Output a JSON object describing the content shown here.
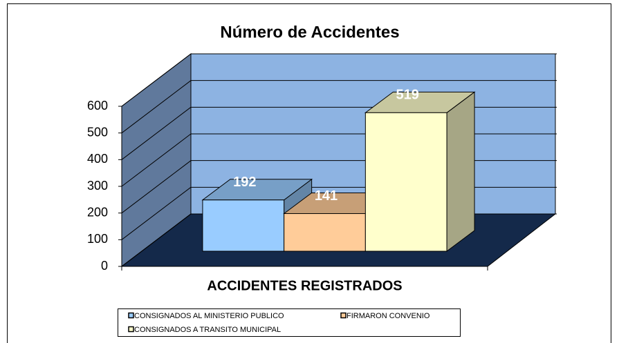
{
  "chart_data": {
    "type": "bar3d",
    "title": "Número de Accidentes",
    "categories": [
      "ACCIDENTES REGISTRADOS"
    ],
    "series": [
      {
        "name": "CONSIGNADOS AL MINISTERIO PUBLICO",
        "color": "#99ccff",
        "values": [
          192
        ]
      },
      {
        "name": "FIRMARON CONVENIO",
        "color": "#ffcc99",
        "values": [
          141
        ]
      },
      {
        "name": "CONSIGNADOS A TRANSITO MUNICIPAL",
        "color": "#ffffcc",
        "values": [
          519
        ]
      }
    ],
    "ylim": [
      0,
      600
    ],
    "yticks": [
      0,
      100,
      200,
      300,
      400,
      500,
      600
    ],
    "grid": true
  }
}
